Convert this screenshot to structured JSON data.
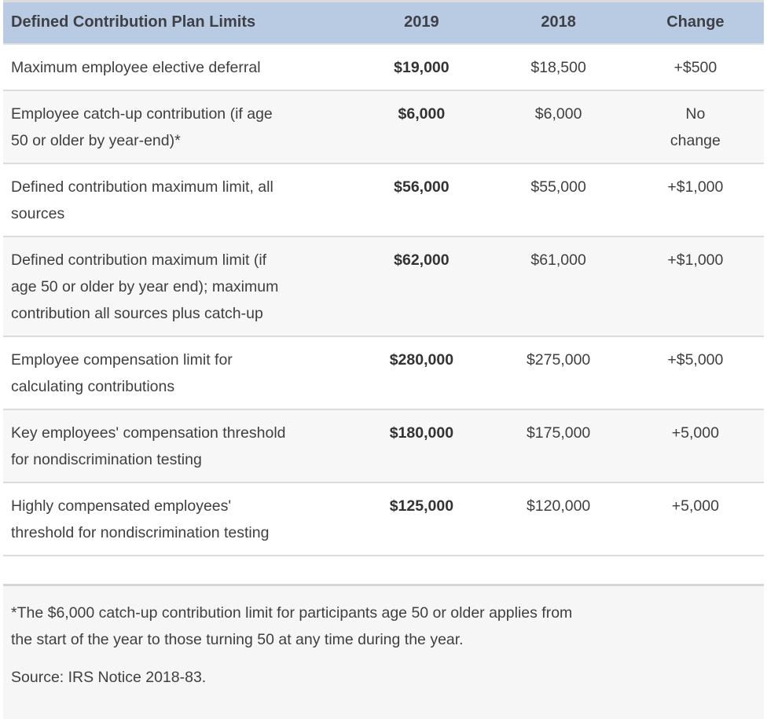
{
  "table": {
    "columns": [
      "Defined Contribution Plan Limits",
      "2019",
      "2018",
      "Change"
    ],
    "rows": [
      {
        "label": "Maximum employee elective deferral",
        "y2019": "$19,000",
        "y2018": "$18,500",
        "change": "+$500"
      },
      {
        "label": "Employee catch-up contribution (if age\n50 or older by year-end)*",
        "y2019": "$6,000",
        "y2018": "$6,000",
        "change": "No\nchange"
      },
      {
        "label": "Defined contribution maximum limit, all\nsources",
        "y2019": "$56,000",
        "y2018": "$55,000",
        "change": "+$1,000"
      },
      {
        "label": "Defined contribution maximum limit (if\nage 50 or older by year end); maximum\ncontribution all sources plus catch-up",
        "y2019": "$62,000",
        "y2018": "$61,000",
        "change": "+$1,000"
      },
      {
        "label": "Employee compensation limit for\ncalculating contributions",
        "y2019": "$280,000",
        "y2018": "$275,000",
        "change": "+$5,000"
      },
      {
        "label": "Key employees' compensation threshold\nfor nondiscrimination testing",
        "y2019": "$180,000",
        "y2018": "$175,000",
        "change": "+5,000"
      },
      {
        "label": "Highly compensated employees'\nthreshold for nondiscrimination testing",
        "y2019": "$125,000",
        "y2018": "$120,000",
        "change": "+5,000"
      }
    ]
  },
  "footnotes": {
    "asterisk_note": "*The $6,000 catch-up contribution limit for participants age 50 or older applies from\nthe start of the year to those turning 50 at any time during the year.",
    "source": "Source: IRS Notice 2018-83."
  },
  "colors": {
    "header_bg": "#b9cbe3",
    "header_text": "#3e4046",
    "alt_row_bg": "#f7f7f7",
    "row_border": "#dcdcdc",
    "footnote_bg": "#f6f6f6",
    "footnote_border": "#d5d5d5",
    "text": "#3f3f3f",
    "bold_value_text": "#333333"
  }
}
